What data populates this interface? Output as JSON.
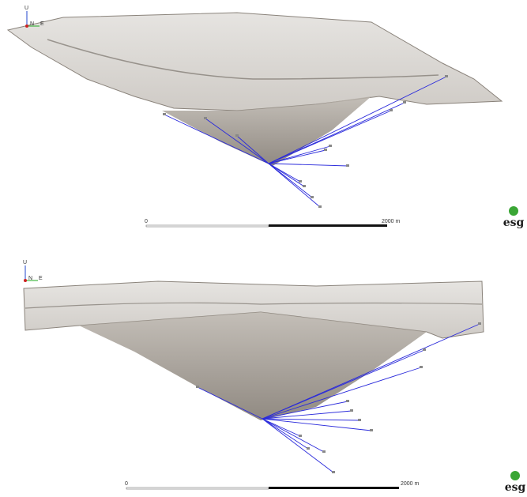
{
  "panels": [
    {
      "axis_labels": {
        "up": "U",
        "north": "N",
        "east": "E"
      },
      "scale_bar": {
        "start_label": "0",
        "end_label": "2000 m"
      },
      "logo": "esg"
    },
    {
      "axis_labels": {
        "up": "U",
        "north": "N",
        "east": "E"
      },
      "scale_bar": {
        "start_label": "0",
        "end_label": "2000 m"
      },
      "logo": "esg"
    }
  ]
}
